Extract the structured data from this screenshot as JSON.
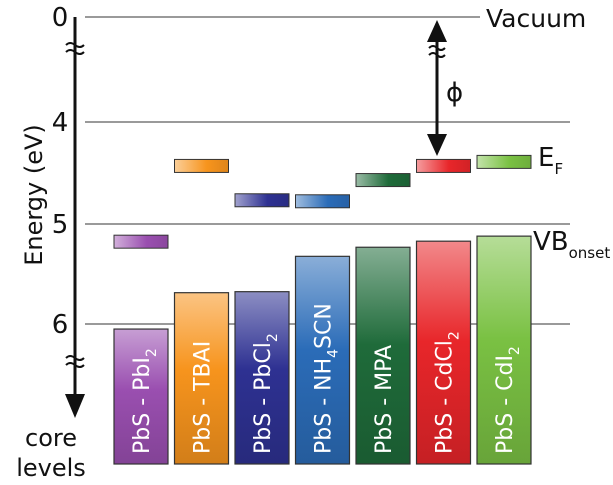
{
  "chart_data": {
    "type": "bar",
    "ylabel": "Energy (eV)",
    "y_tick_labels": [
      "0",
      "4",
      "5",
      "6"
    ],
    "y_axis_bottom_label": [
      "core",
      "levels"
    ],
    "reference_lines": {
      "vacuum": {
        "label": "Vacuum",
        "energy": 0
      },
      "fermi": {
        "label_main": "E",
        "label_sub": "F"
      },
      "vb": {
        "label_main": "VB",
        "label_sub": "onset"
      },
      "work_function_symbol": "ϕ"
    },
    "categories": [
      "PbS - PbI2",
      "PbS - TBAI",
      "PbS - PbCl2",
      "PbS - NH4SCN",
      "PbS - MPA",
      "PbS - CdCl2",
      "PbS - CdI2"
    ],
    "series": [
      {
        "key": "vb_onset",
        "values": [
          6.05,
          5.69,
          5.68,
          5.33,
          5.24,
          5.18,
          5.13
        ]
      },
      {
        "key": "fermi_level",
        "values": [
          5.18,
          4.43,
          4.77,
          4.78,
          4.57,
          4.43,
          4.39
        ]
      }
    ],
    "bar_labels": [
      {
        "pre": "PbS - PbI",
        "sub": "2",
        "post": ""
      },
      {
        "pre": "PbS - TBAI",
        "sub": "",
        "post": ""
      },
      {
        "pre": "PbS - PbCl",
        "sub": "2",
        "post": ""
      },
      {
        "pre": "PbS - NH",
        "sub": "4",
        "post": "SCN"
      },
      {
        "pre": "PbS - MPA",
        "sub": "",
        "post": ""
      },
      {
        "pre": "PbS - CdCl",
        "sub": "2",
        "post": ""
      },
      {
        "pre": "PbS - CdI",
        "sub": "2",
        "post": ""
      }
    ],
    "colors": [
      "#9a4fb0",
      "#f7941d",
      "#2e3192",
      "#2b6cb8",
      "#1f6b3a",
      "#e8262a",
      "#7ac143"
    ]
  }
}
